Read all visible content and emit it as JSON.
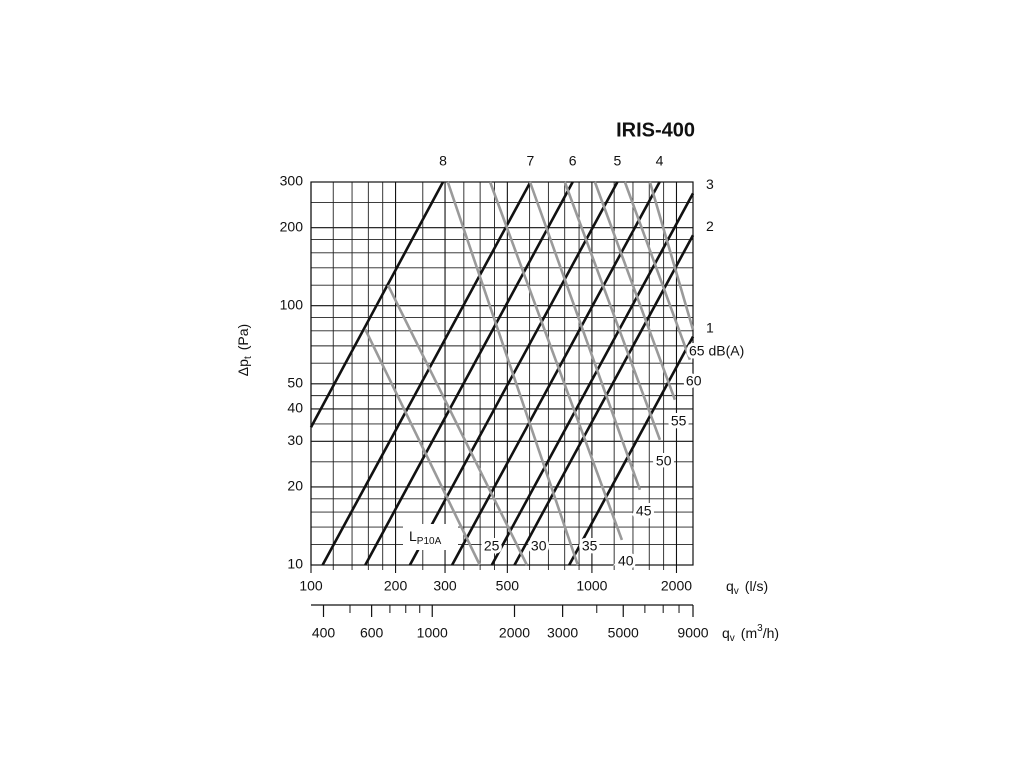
{
  "chart_data": {
    "type": "line",
    "title": "IRIS-400",
    "xscale": "log",
    "yscale": "log",
    "xlim": [
      100,
      2290
    ],
    "ylim": [
      10,
      300
    ],
    "x2lim": [
      360,
      9000
    ],
    "xticks": [
      100,
      200,
      300,
      500,
      1000,
      2000
    ],
    "x_minor_grid": [
      120,
      140,
      160,
      180,
      250,
      350,
      400,
      450,
      600,
      700,
      800,
      900,
      1200,
      1400,
      1600,
      1800
    ],
    "yticks": [
      10,
      20,
      30,
      40,
      50,
      100,
      200,
      300
    ],
    "y_minor_grid": [
      12,
      14,
      16,
      18,
      25,
      35,
      45,
      60,
      70,
      80,
      90,
      120,
      140,
      160,
      180,
      250
    ],
    "x2ticks": [
      400,
      600,
      1000,
      2000,
      3000,
      5000,
      9000
    ],
    "x2_minor_ticks": [
      500,
      700,
      800,
      900,
      4000,
      6000,
      7000,
      8000
    ],
    "grid": true,
    "x_label": {
      "main": "q",
      "sub": "v",
      "unit": "(l/s)"
    },
    "x2_label": {
      "main": "q",
      "sub": "v",
      "unit_pre": "(m",
      "sup": "3",
      "unit_post": "/h)"
    },
    "y_label": {
      "main": "Δp",
      "sub": "t",
      "unit": "(Pa)"
    },
    "sound_label": {
      "main": "L",
      "sub": "P10A"
    },
    "series": [
      {
        "name": "8",
        "group": "damper",
        "color": "#111111",
        "x": [
          100,
          295
        ],
        "values": [
          34,
          300
        ]
      },
      {
        "name": "7",
        "group": "damper",
        "color": "#111111",
        "x": [
          110,
          604
        ],
        "values": [
          10,
          300
        ]
      },
      {
        "name": "6",
        "group": "damper",
        "color": "#111111",
        "x": [
          156,
          854
        ],
        "values": [
          10,
          300
        ]
      },
      {
        "name": "5",
        "group": "damper",
        "color": "#111111",
        "x": [
          225,
          1232
        ],
        "values": [
          10,
          300
        ]
      },
      {
        "name": "4",
        "group": "damper",
        "color": "#111111",
        "x": [
          318,
          1741
        ],
        "values": [
          10,
          300
        ]
      },
      {
        "name": "3",
        "group": "damper",
        "color": "#111111",
        "x": [
          440,
          2290
        ],
        "values": [
          10,
          271
        ]
      },
      {
        "name": "2",
        "group": "damper",
        "color": "#111111",
        "x": [
          530,
          2290
        ],
        "values": [
          10,
          187
        ]
      },
      {
        "name": "1",
        "group": "damper",
        "color": "#111111",
        "x": [
          830,
          2290
        ],
        "values": [
          10,
          76
        ]
      },
      {
        "name": "25",
        "group": "sound",
        "color": "#9a9a9a",
        "x": [
          156,
          399
        ],
        "values": [
          81,
          10
        ]
      },
      {
        "name": "30",
        "group": "sound",
        "color": "#9a9a9a",
        "x": [
          188,
          587
        ],
        "values": [
          120,
          10
        ]
      },
      {
        "name": "35",
        "group": "sound",
        "color": "#9a9a9a",
        "x": [
          307,
          891
        ],
        "values": [
          300,
          10
        ]
      },
      {
        "name": "40",
        "group": "sound",
        "color": "#9a9a9a",
        "x": [
          434,
          1279
        ],
        "values": [
          300,
          12.5
        ]
      },
      {
        "name": "45",
        "group": "sound",
        "color": "#9a9a9a",
        "x": [
          602,
          1482
        ],
        "values": [
          300,
          19.5
        ]
      },
      {
        "name": "50",
        "group": "sound",
        "color": "#9a9a9a",
        "x": [
          801,
          1746
        ],
        "values": [
          300,
          30.4
        ]
      },
      {
        "name": "55",
        "group": "sound",
        "color": "#9a9a9a",
        "x": [
          1025,
          1974
        ],
        "values": [
          300,
          43.4
        ]
      },
      {
        "name": "60",
        "group": "sound",
        "color": "#9a9a9a",
        "x": [
          1310,
          2233
        ],
        "values": [
          300,
          61.9
        ]
      },
      {
        "name": "65 dB(A)",
        "group": "sound",
        "color": "#9a9a9a",
        "x": [
          1608,
          2290
        ],
        "values": [
          300,
          80.8
        ]
      }
    ]
  }
}
